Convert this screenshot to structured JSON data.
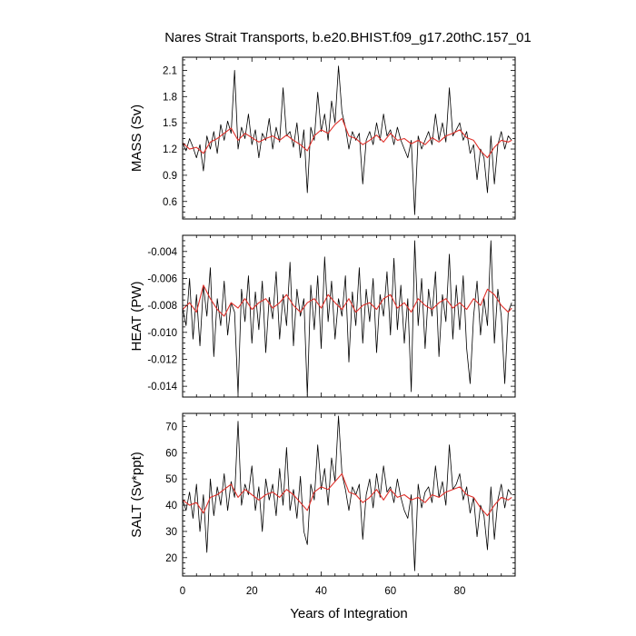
{
  "title": "Nares Strait Transports, b.e20.BHIST.f09_g17.20thC.157_01",
  "xlabel": "Years of Integration",
  "colors": {
    "raw": "#000000",
    "smooth": "#e0302a",
    "frame": "#000000"
  },
  "chart_data": [
    {
      "type": "line",
      "panel": "mass",
      "ylabel": "MASS (Sv)",
      "xlim": [
        0,
        96
      ],
      "ylim": [
        0.4,
        2.25
      ],
      "xticks": [
        0,
        20,
        40,
        60,
        80
      ],
      "xtick_labels": [
        "0",
        "20",
        "40",
        "60",
        "80"
      ],
      "yticks": [
        0.6,
        0.9,
        1.2,
        1.5,
        1.8,
        2.1
      ],
      "ytick_labels": [
        "0.6",
        "0.9",
        "1.2",
        "1.5",
        "1.8",
        "2.1"
      ],
      "series": [
        {
          "style": "raw",
          "x": [
            0,
            1,
            2,
            3,
            4,
            5,
            6,
            7,
            8,
            9,
            10,
            11,
            12,
            13,
            14,
            15,
            16,
            17,
            18,
            19,
            20,
            21,
            22,
            23,
            24,
            25,
            26,
            27,
            28,
            29,
            30,
            31,
            32,
            33,
            34,
            35,
            36,
            37,
            38,
            39,
            40,
            41,
            42,
            43,
            44,
            45,
            46,
            47,
            48,
            49,
            50,
            51,
            52,
            53,
            54,
            55,
            56,
            57,
            58,
            59,
            60,
            61,
            62,
            63,
            64,
            65,
            66,
            67,
            68,
            69,
            70,
            71,
            72,
            73,
            74,
            75,
            76,
            77,
            78,
            79,
            80,
            81,
            82,
            83,
            84,
            85,
            86,
            87,
            88,
            89,
            90,
            91,
            92,
            93,
            94,
            95
          ],
          "y": [
            1.27,
            1.18,
            1.32,
            1.22,
            1.1,
            1.25,
            0.95,
            1.35,
            1.2,
            1.4,
            1.15,
            1.48,
            1.3,
            1.52,
            1.38,
            2.1,
            1.2,
            1.45,
            1.32,
            1.6,
            1.25,
            1.42,
            1.1,
            1.38,
            1.3,
            1.55,
            1.2,
            1.45,
            1.28,
            1.9,
            1.35,
            1.4,
            1.22,
            1.5,
            1.1,
            1.42,
            0.7,
            1.45,
            1.3,
            1.85,
            1.4,
            1.6,
            1.3,
            1.75,
            1.5,
            2.15,
            1.62,
            1.45,
            1.2,
            1.4,
            1.3,
            1.38,
            0.8,
            1.3,
            1.4,
            1.25,
            1.5,
            1.3,
            1.6,
            1.35,
            1.42,
            1.25,
            1.45,
            1.3,
            1.2,
            1.1,
            1.3,
            0.45,
            1.35,
            1.2,
            1.3,
            1.4,
            1.25,
            1.6,
            1.3,
            1.5,
            1.28,
            1.9,
            1.35,
            1.42,
            1.5,
            1.3,
            1.4,
            1.15,
            1.25,
            0.85,
            1.2,
            1.1,
            0.7,
            1.35,
            0.8,
            1.25,
            1.4,
            1.2,
            1.35,
            1.3
          ]
        },
        {
          "style": "smooth",
          "x": [
            0,
            2,
            4,
            6,
            8,
            10,
            12,
            14,
            16,
            18,
            20,
            22,
            24,
            26,
            28,
            30,
            32,
            34,
            36,
            38,
            40,
            42,
            44,
            46,
            48,
            50,
            52,
            54,
            56,
            58,
            60,
            62,
            64,
            66,
            68,
            70,
            72,
            74,
            76,
            78,
            80,
            82,
            84,
            86,
            88,
            90,
            92,
            94,
            95
          ],
          "y": [
            1.27,
            1.2,
            1.22,
            1.15,
            1.28,
            1.32,
            1.38,
            1.44,
            1.3,
            1.38,
            1.33,
            1.28,
            1.32,
            1.35,
            1.3,
            1.36,
            1.3,
            1.25,
            1.18,
            1.35,
            1.42,
            1.38,
            1.48,
            1.55,
            1.35,
            1.32,
            1.25,
            1.3,
            1.36,
            1.28,
            1.38,
            1.3,
            1.32,
            1.26,
            1.3,
            1.25,
            1.33,
            1.28,
            1.35,
            1.38,
            1.42,
            1.33,
            1.3,
            1.18,
            1.1,
            1.22,
            1.3,
            1.28,
            1.3
          ]
        }
      ]
    },
    {
      "type": "line",
      "panel": "heat",
      "ylabel": "HEAT (PW)",
      "xlim": [
        0,
        96
      ],
      "ylim": [
        -0.0148,
        -0.0028
      ],
      "xticks": [
        0,
        20,
        40,
        60,
        80
      ],
      "xtick_labels": [
        "0",
        "20",
        "40",
        "60",
        "80"
      ],
      "yticks": [
        -0.014,
        -0.012,
        -0.01,
        -0.008,
        -0.006,
        -0.004
      ],
      "ytick_labels": [
        "-0.014",
        "-0.012",
        "-0.010",
        "-0.008",
        "-0.006",
        "-0.004"
      ],
      "series": [
        {
          "style": "raw",
          "x": [
            0,
            1,
            2,
            3,
            4,
            5,
            6,
            7,
            8,
            9,
            10,
            11,
            12,
            13,
            14,
            15,
            16,
            17,
            18,
            19,
            20,
            21,
            22,
            23,
            24,
            25,
            26,
            27,
            28,
            29,
            30,
            31,
            32,
            33,
            34,
            35,
            36,
            37,
            38,
            39,
            40,
            41,
            42,
            43,
            44,
            45,
            46,
            47,
            48,
            49,
            50,
            51,
            52,
            53,
            54,
            55,
            56,
            57,
            58,
            59,
            60,
            61,
            62,
            63,
            64,
            65,
            66,
            67,
            68,
            69,
            70,
            71,
            72,
            73,
            74,
            75,
            76,
            77,
            78,
            79,
            80,
            81,
            82,
            83,
            84,
            85,
            86,
            87,
            88,
            89,
            90,
            91,
            92,
            93,
            94,
            95
          ],
          "y": [
            -0.0082,
            -0.0095,
            -0.006,
            -0.0105,
            -0.0072,
            -0.011,
            -0.0065,
            -0.0088,
            -0.0052,
            -0.0118,
            -0.0075,
            -0.0095,
            -0.0062,
            -0.0102,
            -0.0078,
            -0.0085,
            -0.0146,
            -0.0068,
            -0.0092,
            -0.0058,
            -0.0108,
            -0.007,
            -0.0098,
            -0.0062,
            -0.0115,
            -0.0074,
            -0.009,
            -0.0055,
            -0.0105,
            -0.0072,
            -0.0095,
            -0.0048,
            -0.011,
            -0.0068,
            -0.0088,
            -0.0075,
            -0.0147,
            -0.0065,
            -0.0098,
            -0.0058,
            -0.0112,
            -0.0044,
            -0.0092,
            -0.0062,
            -0.0105,
            -0.0075,
            -0.0088,
            -0.0058,
            -0.0122,
            -0.007,
            -0.0095,
            -0.0052,
            -0.0108,
            -0.0068,
            -0.0092,
            -0.006,
            -0.0115,
            -0.0072,
            -0.0088,
            -0.0055,
            -0.0102,
            -0.0045,
            -0.0098,
            -0.0065,
            -0.0108,
            -0.0075,
            -0.0144,
            -0.0032,
            -0.0095,
            -0.006,
            -0.0112,
            -0.0068,
            -0.0088,
            -0.0055,
            -0.0118,
            -0.0072,
            -0.0092,
            -0.0042,
            -0.0105,
            -0.0065,
            -0.0098,
            -0.0058,
            -0.0112,
            -0.0138,
            -0.0088,
            -0.0062,
            -0.0102,
            -0.0075,
            -0.0095,
            -0.0032,
            -0.0108,
            -0.0068,
            -0.0088,
            -0.0138,
            -0.0085,
            -0.0078
          ]
        },
        {
          "style": "smooth",
          "x": [
            0,
            2,
            4,
            6,
            8,
            10,
            12,
            14,
            16,
            18,
            20,
            22,
            24,
            26,
            28,
            30,
            32,
            34,
            36,
            38,
            40,
            42,
            44,
            46,
            48,
            50,
            52,
            54,
            56,
            58,
            60,
            62,
            64,
            66,
            68,
            70,
            72,
            74,
            76,
            78,
            80,
            82,
            84,
            86,
            88,
            90,
            92,
            94,
            95
          ],
          "y": [
            -0.0083,
            -0.0078,
            -0.0085,
            -0.0065,
            -0.0075,
            -0.0083,
            -0.0088,
            -0.0078,
            -0.0082,
            -0.0075,
            -0.0083,
            -0.0078,
            -0.0075,
            -0.0082,
            -0.0078,
            -0.0072,
            -0.008,
            -0.0085,
            -0.0078,
            -0.0075,
            -0.0082,
            -0.0072,
            -0.0078,
            -0.0083,
            -0.0075,
            -0.0085,
            -0.008,
            -0.0078,
            -0.0083,
            -0.0075,
            -0.0072,
            -0.0082,
            -0.0078,
            -0.0085,
            -0.0075,
            -0.008,
            -0.0083,
            -0.0078,
            -0.0075,
            -0.0082,
            -0.0078,
            -0.0083,
            -0.0075,
            -0.008,
            -0.0068,
            -0.0072,
            -0.008,
            -0.0085,
            -0.0082
          ]
        }
      ]
    },
    {
      "type": "line",
      "panel": "salt",
      "ylabel": "SALT (Sv*ppt)",
      "xlim": [
        0,
        96
      ],
      "ylim": [
        13,
        75
      ],
      "xticks": [
        0,
        20,
        40,
        60,
        80
      ],
      "xtick_labels": [
        "0",
        "20",
        "40",
        "60",
        "80"
      ],
      "yticks": [
        20,
        30,
        40,
        50,
        60,
        70
      ],
      "ytick_labels": [
        "20",
        "30",
        "40",
        "50",
        "60",
        "70"
      ],
      "series": [
        {
          "style": "raw",
          "x": [
            0,
            1,
            2,
            3,
            4,
            5,
            6,
            7,
            8,
            9,
            10,
            11,
            12,
            13,
            14,
            15,
            16,
            17,
            18,
            19,
            20,
            21,
            22,
            23,
            24,
            25,
            26,
            27,
            28,
            29,
            30,
            31,
            32,
            33,
            34,
            35,
            36,
            37,
            38,
            39,
            40,
            41,
            42,
            43,
            44,
            45,
            46,
            47,
            48,
            49,
            50,
            51,
            52,
            53,
            54,
            55,
            56,
            57,
            58,
            59,
            60,
            61,
            62,
            63,
            64,
            65,
            66,
            67,
            68,
            69,
            70,
            71,
            72,
            73,
            74,
            75,
            76,
            77,
            78,
            79,
            80,
            81,
            82,
            83,
            84,
            85,
            86,
            87,
            88,
            89,
            90,
            91,
            92,
            93,
            94,
            95
          ],
          "y": [
            42,
            38,
            45,
            35,
            48,
            30,
            44,
            22,
            50,
            36,
            47,
            40,
            52,
            38,
            49,
            43,
            72,
            40,
            48,
            44,
            55,
            38,
            47,
            30,
            50,
            42,
            48,
            36,
            54,
            40,
            62,
            38,
            46,
            35,
            51,
            30,
            25,
            48,
            42,
            63,
            46,
            54,
            40,
            58,
            49,
            74,
            52,
            46,
            38,
            47,
            44,
            48,
            27,
            44,
            50,
            39,
            52,
            43,
            55,
            45,
            47,
            41,
            50,
            43,
            38,
            35,
            44,
            15,
            48,
            39,
            45,
            47,
            41,
            55,
            43,
            49,
            40,
            63,
            46,
            48,
            52,
            42,
            47,
            37,
            43,
            28,
            40,
            36,
            23,
            47,
            27,
            42,
            48,
            39,
            46,
            44
          ]
        },
        {
          "style": "smooth",
          "x": [
            0,
            2,
            4,
            6,
            8,
            10,
            12,
            14,
            16,
            18,
            20,
            22,
            24,
            26,
            28,
            30,
            32,
            34,
            36,
            38,
            40,
            42,
            44,
            46,
            48,
            50,
            52,
            54,
            56,
            58,
            60,
            62,
            64,
            66,
            68,
            70,
            72,
            74,
            76,
            78,
            80,
            82,
            84,
            86,
            88,
            90,
            92,
            94,
            95
          ],
          "y": [
            42,
            40,
            41,
            37,
            43,
            44,
            46,
            48,
            43,
            46,
            44,
            42,
            44,
            45,
            43,
            46,
            44,
            41,
            38,
            45,
            47,
            46,
            49,
            52,
            45,
            44,
            41,
            43,
            46,
            42,
            46,
            43,
            44,
            42,
            43,
            41,
            44,
            43,
            45,
            46,
            47,
            44,
            43,
            39,
            36,
            40,
            43,
            42,
            43
          ]
        }
      ]
    }
  ]
}
